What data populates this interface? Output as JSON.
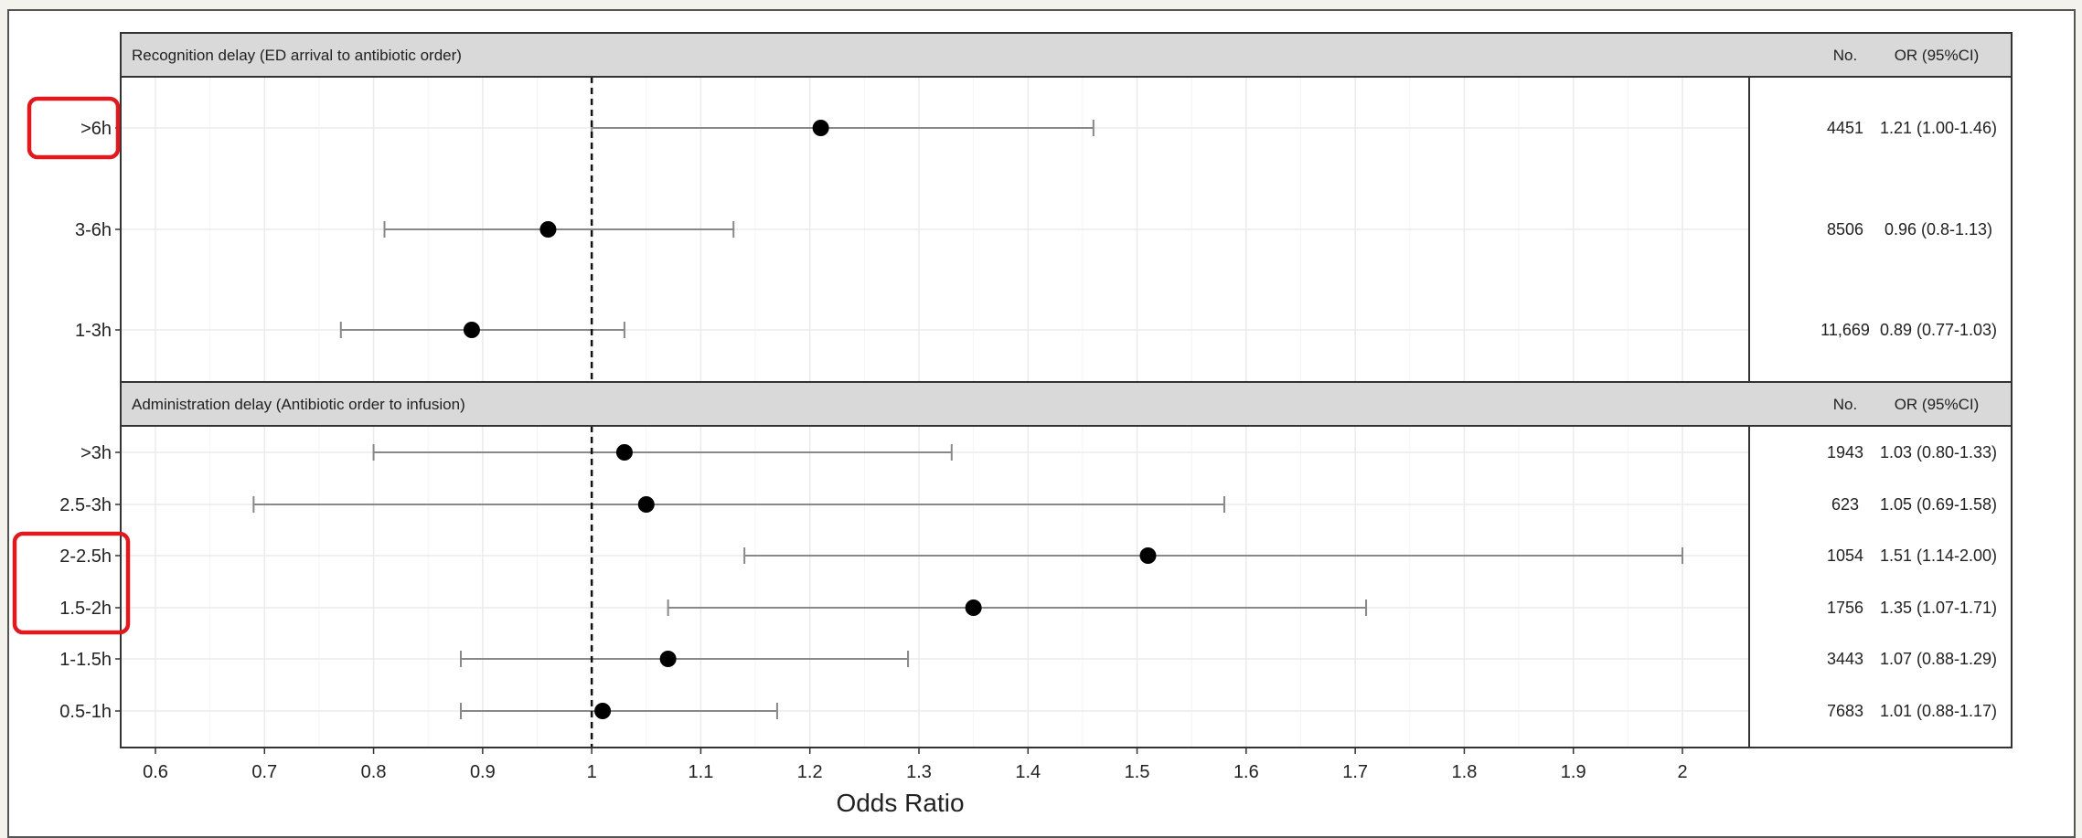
{
  "chart_data": {
    "type": "forest",
    "xlabel": "Odds Ratio",
    "xlim": [
      0.54,
      2.07
    ],
    "xticks": [
      0.6,
      0.7,
      0.8,
      0.9,
      1,
      1.1,
      1.2,
      1.3,
      1.4,
      1.5,
      1.6,
      1.7,
      1.8,
      1.9,
      2
    ],
    "reference_line": 1,
    "grid": true,
    "col_headers": {
      "n": "No.",
      "or": "OR (95%CI)"
    },
    "panels": [
      {
        "title": "Recognition delay (ED  arrival to antibiotic order)",
        "rows": [
          {
            "label": ">6h",
            "n": "4451",
            "or_text": "1.21 (1.00-1.46)",
            "or": 1.21,
            "lo": 1.0,
            "hi": 1.46,
            "highlighted": true
          },
          {
            "label": "3-6h",
            "n": "8506",
            "or_text": "0.96 (0.8-1.13)",
            "or": 0.96,
            "lo": 0.81,
            "hi": 1.13,
            "highlighted": false
          },
          {
            "label": "1-3h",
            "n": "11,669",
            "or_text": "0.89 (0.77-1.03)",
            "or": 0.89,
            "lo": 0.77,
            "hi": 1.03,
            "highlighted": false
          }
        ]
      },
      {
        "title": "Administration delay (Antibiotic order to infusion)",
        "rows": [
          {
            "label": ">3h",
            "n": "1943",
            "or_text": "1.03 (0.80-1.33)",
            "or": 1.03,
            "lo": 0.8,
            "hi": 1.33,
            "highlighted": false
          },
          {
            "label": "2.5-3h",
            "n": "623",
            "or_text": "1.05 (0.69-1.58)",
            "or": 1.05,
            "lo": 0.69,
            "hi": 1.58,
            "highlighted": false
          },
          {
            "label": "2-2.5h",
            "n": "1054",
            "or_text": "1.51 (1.14-2.00)",
            "or": 1.51,
            "lo": 1.14,
            "hi": 2.0,
            "highlighted": true
          },
          {
            "label": "1.5-2h",
            "n": "1756",
            "or_text": "1.35 (1.07-1.71)",
            "or": 1.35,
            "lo": 1.07,
            "hi": 1.71,
            "highlighted": true
          },
          {
            "label": "1-1.5h",
            "n": "3443",
            "or_text": "1.07 (0.88-1.29)",
            "or": 1.07,
            "lo": 0.88,
            "hi": 1.29,
            "highlighted": false
          },
          {
            "label": "0.5-1h",
            "n": "7683",
            "or_text": "1.01 (0.88-1.17)",
            "or": 1.01,
            "lo": 0.88,
            "hi": 1.17,
            "highlighted": false
          }
        ]
      }
    ],
    "colors": {
      "point": "#000000",
      "ci": "#888888",
      "highlight": "#e0191e",
      "header_bg": "#d9d9d9",
      "grid": "#ebebeb"
    }
  }
}
